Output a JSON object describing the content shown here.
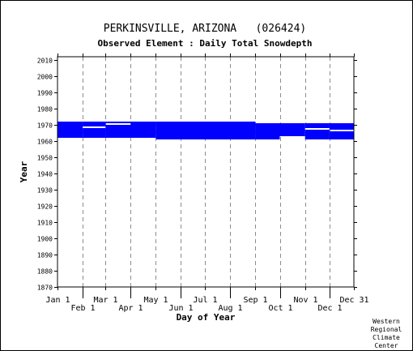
{
  "chart_data": {
    "type": "bar",
    "title": "PERKINSVILLE, ARIZONA   (026424)",
    "subtitle": "Observed Element : Daily Total Snowdepth",
    "xlabel": "Day of Year",
    "ylabel": "Year",
    "ylim": [
      1870,
      2012
    ],
    "yticks": [
      1870,
      1880,
      1890,
      1900,
      1910,
      1920,
      1930,
      1940,
      1950,
      1960,
      1970,
      1980,
      1990,
      2000,
      2010
    ],
    "xlim": [
      1,
      365
    ],
    "xticks_upper": [
      {
        "label": "Jan 1",
        "day": 1
      },
      {
        "label": "Mar 1",
        "day": 60
      },
      {
        "label": "May 1",
        "day": 121
      },
      {
        "label": "Jul 1",
        "day": 182
      },
      {
        "label": "Sep 1",
        "day": 244
      },
      {
        "label": "Nov 1",
        "day": 305
      },
      {
        "label": "Dec 31",
        "day": 365
      }
    ],
    "xticks_lower": [
      {
        "label": "Feb 1",
        "day": 32
      },
      {
        "label": "Apr 1",
        "day": 91
      },
      {
        "label": "Jun 1",
        "day": 152
      },
      {
        "label": "Aug 1",
        "day": 213
      },
      {
        "label": "Oct 1",
        "day": 274
      },
      {
        "label": "Dec 1",
        "day": 335
      }
    ],
    "grid": true,
    "color": "#0000ff",
    "coverage": [
      {
        "start_day": 1,
        "end_day": 31,
        "year_from": 1962,
        "year_to": 1972
      },
      {
        "start_day": 32,
        "end_day": 59,
        "year_from": 1962,
        "year_to": 1968
      },
      {
        "start_day": 32,
        "end_day": 59,
        "year_from": 1969,
        "year_to": 1972
      },
      {
        "start_day": 60,
        "end_day": 90,
        "year_from": 1962,
        "year_to": 1970
      },
      {
        "start_day": 60,
        "end_day": 90,
        "year_from": 1971,
        "year_to": 1972
      },
      {
        "start_day": 91,
        "end_day": 121,
        "year_from": 1962,
        "year_to": 1972
      },
      {
        "start_day": 122,
        "end_day": 243,
        "year_from": 1961,
        "year_to": 1972
      },
      {
        "start_day": 244,
        "end_day": 273,
        "year_from": 1961,
        "year_to": 1971
      },
      {
        "start_day": 274,
        "end_day": 304,
        "year_from": 1963,
        "year_to": 1971
      },
      {
        "start_day": 305,
        "end_day": 334,
        "year_from": 1961,
        "year_to": 1967
      },
      {
        "start_day": 305,
        "end_day": 334,
        "year_from": 1968,
        "year_to": 1971
      },
      {
        "start_day": 335,
        "end_day": 365,
        "year_from": 1961,
        "year_to": 1966
      },
      {
        "start_day": 335,
        "end_day": 365,
        "year_from": 1967,
        "year_to": 1971
      }
    ]
  },
  "credit": [
    "Western",
    "Regional",
    "Climate",
    "Center"
  ]
}
